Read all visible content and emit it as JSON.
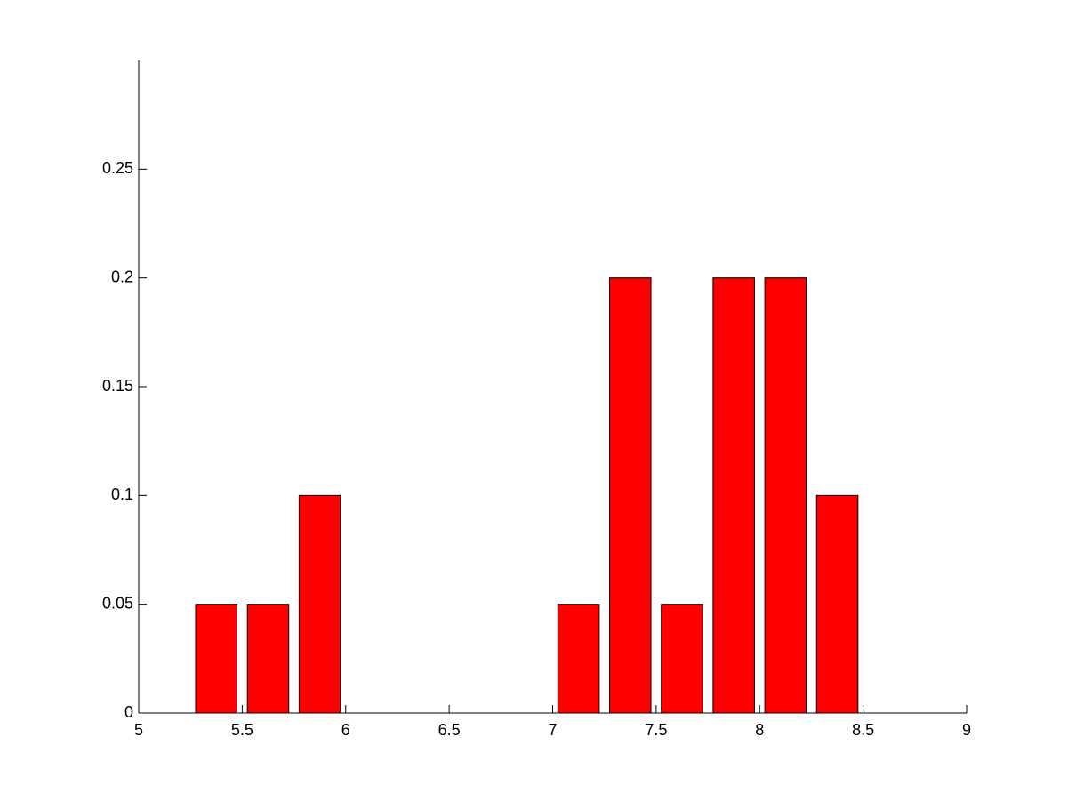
{
  "chart_data": {
    "type": "histogram",
    "bins": [
      5.25,
      5.5,
      5.75,
      6.0,
      6.25,
      6.5,
      6.75,
      7.0,
      7.25,
      7.5,
      7.75,
      8.0,
      8.25,
      8.5
    ],
    "values": [
      0.05,
      0.05,
      0.1,
      0,
      0,
      0,
      0,
      0.05,
      0.2,
      0.05,
      0.2,
      0.2,
      0.1
    ],
    "color": "#ff0000",
    "xlim": [
      5,
      9
    ],
    "xticks": [
      5,
      5.5,
      6,
      6.5,
      7,
      7.5,
      8,
      8.5,
      9
    ],
    "ylim": [
      0,
      0.3
    ],
    "yticks": [
      0,
      0.05,
      0.1,
      0.15,
      0.2,
      0.25
    ],
    "grid": false
  }
}
